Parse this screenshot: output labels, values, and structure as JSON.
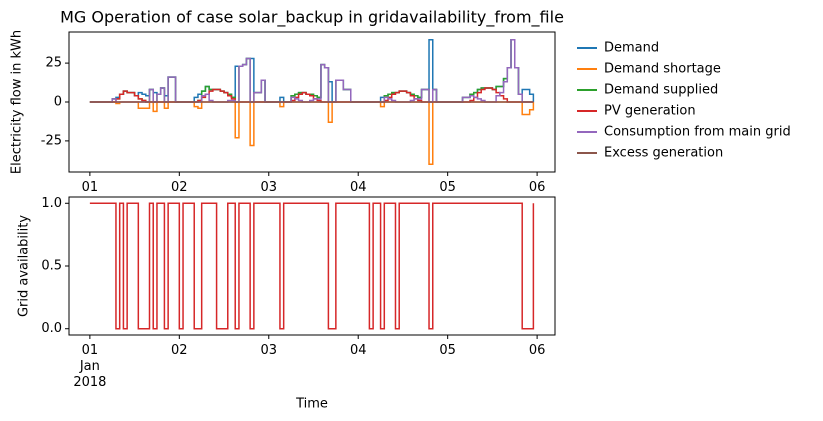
{
  "chart_data": {
    "type": "line",
    "xlabel": "Time",
    "x": [
      0,
      1,
      2,
      3,
      4,
      5,
      6,
      7,
      8,
      9,
      10,
      11,
      12,
      13,
      14,
      15,
      16,
      17,
      18,
      19,
      20,
      21,
      22,
      23,
      24,
      25,
      26,
      27,
      28,
      29,
      30,
      31,
      32,
      33,
      34,
      35,
      36,
      37,
      38,
      39,
      40,
      41,
      42,
      43,
      44,
      45,
      46,
      47,
      48,
      49,
      50,
      51,
      52,
      53,
      54,
      55,
      56,
      57,
      58,
      59,
      60,
      61,
      62,
      63,
      64,
      65,
      66,
      67,
      68,
      69,
      70,
      71,
      72,
      73,
      74,
      75,
      76,
      77,
      78,
      79,
      80,
      81,
      82,
      83,
      84,
      85,
      86,
      87,
      88,
      89,
      90,
      91,
      92,
      93,
      94,
      95,
      96,
      97,
      98,
      99,
      100,
      101,
      102,
      103,
      104,
      105,
      106,
      107,
      108,
      109,
      110,
      111,
      112,
      113,
      114,
      115,
      116,
      117,
      118,
      119
    ],
    "xlim": [
      -5.6,
      124.8
    ],
    "xticks": [
      {
        "value": 0,
        "label": "01\nJan\n2018"
      },
      {
        "value": 24,
        "label": "02"
      },
      {
        "value": 48,
        "label": "03"
      },
      {
        "value": 72,
        "label": "04"
      },
      {
        "value": 96,
        "label": "05"
      },
      {
        "value": 120,
        "label": "06"
      }
    ],
    "panels": [
      {
        "title": "MG Operation of case solar_backup in gridavailability_from_file",
        "ylabel": "Electricity flow in kWh",
        "ylim": [
          -45,
          45
        ],
        "yticks": [
          -25,
          0,
          25
        ],
        "legend": "outside right",
        "series": [
          {
            "name": "Demand",
            "color": "#1f77b4",
            "values": [
              0,
              0,
              0,
              0,
              0,
              0,
              2,
              3,
              5,
              7,
              6,
              6,
              4,
              6,
              5,
              4,
              8,
              6,
              5,
              9,
              4,
              16,
              16,
              0,
              0,
              0,
              0,
              0,
              3,
              5,
              7,
              10,
              8,
              8,
              8,
              7,
              6,
              5,
              3,
              23,
              23,
              24,
              28,
              28,
              6,
              6,
              14,
              0,
              0,
              0,
              0,
              3,
              0,
              0,
              4,
              5,
              6,
              6,
              5,
              5,
              4,
              3,
              24,
              22,
              13,
              0,
              14,
              14,
              8,
              8,
              0,
              0,
              0,
              0,
              0,
              0,
              0,
              0,
              3,
              4,
              5,
              6,
              6,
              7,
              7,
              6,
              5,
              4,
              3,
              8,
              8,
              40,
              8,
              0,
              0,
              0,
              0,
              0,
              0,
              0,
              3,
              3,
              5,
              6,
              8,
              9,
              9,
              9,
              8,
              10,
              10,
              15,
              22,
              40,
              22,
              5,
              8,
              8,
              5,
              0
            ]
          },
          {
            "name": "Demand shortage",
            "color": "#ff7f0e",
            "values": [
              0,
              0,
              0,
              0,
              0,
              0,
              0,
              -1,
              0,
              0,
              0,
              0,
              0,
              -4,
              -4,
              -4,
              0,
              -6,
              0,
              0,
              -4,
              0,
              0,
              0,
              0,
              0,
              0,
              0,
              -3,
              -4,
              0,
              0,
              0,
              0,
              0,
              0,
              0,
              0,
              0,
              -23,
              0,
              0,
              0,
              -28,
              0,
              0,
              0,
              0,
              0,
              0,
              0,
              -3,
              0,
              0,
              0,
              0,
              0,
              0,
              0,
              0,
              0,
              0,
              0,
              0,
              -13,
              0,
              0,
              0,
              0,
              0,
              0,
              0,
              0,
              0,
              0,
              0,
              0,
              0,
              -3,
              0,
              0,
              0,
              0,
              0,
              0,
              0,
              0,
              0,
              0,
              0,
              0,
              -40,
              0,
              0,
              0,
              0,
              0,
              0,
              0,
              0,
              0,
              0,
              0,
              0,
              0,
              0,
              0,
              0,
              0,
              0,
              0,
              0,
              0,
              0,
              0,
              0,
              -8,
              -8,
              -5,
              0
            ]
          },
          {
            "name": "Demand supplied",
            "color": "#2ca02c",
            "values": [
              0,
              0,
              0,
              0,
              0,
              0,
              2,
              2,
              5,
              7,
              6,
              6,
              4,
              2,
              1,
              0,
              8,
              0,
              5,
              9,
              0,
              16,
              16,
              0,
              0,
              0,
              0,
              0,
              0,
              1,
              7,
              10,
              8,
              8,
              8,
              7,
              6,
              5,
              3,
              0,
              23,
              24,
              28,
              0,
              6,
              6,
              14,
              0,
              0,
              0,
              0,
              0,
              0,
              0,
              4,
              5,
              6,
              6,
              5,
              5,
              4,
              3,
              24,
              22,
              0,
              0,
              14,
              14,
              8,
              8,
              0,
              0,
              0,
              0,
              0,
              0,
              0,
              0,
              0,
              4,
              5,
              6,
              6,
              7,
              7,
              6,
              5,
              4,
              3,
              8,
              8,
              0,
              8,
              0,
              0,
              0,
              0,
              0,
              0,
              0,
              3,
              3,
              5,
              6,
              8,
              9,
              9,
              9,
              8,
              10,
              10,
              15,
              22,
              40,
              22,
              5,
              0,
              0,
              0,
              0
            ]
          },
          {
            "name": "PV generation",
            "color": "#d62728",
            "values": [
              0,
              0,
              0,
              0,
              0,
              0,
              0,
              2,
              5,
              7,
              6,
              6,
              4,
              2,
              1,
              0,
              0,
              0,
              0,
              0,
              0,
              0,
              0,
              0,
              0,
              0,
              0,
              0,
              0,
              1,
              3,
              5,
              7,
              8,
              8,
              7,
              6,
              4,
              2,
              0,
              0,
              0,
              0,
              0,
              0,
              0,
              0,
              0,
              0,
              0,
              0,
              0,
              0,
              0,
              1,
              3,
              5,
              6,
              5,
              4,
              2,
              1,
              0,
              0,
              0,
              0,
              0,
              0,
              0,
              0,
              0,
              0,
              0,
              0,
              0,
              0,
              0,
              0,
              0,
              1,
              3,
              5,
              6,
              7,
              7,
              6,
              4,
              2,
              1,
              0,
              0,
              0,
              0,
              0,
              0,
              0,
              0,
              0,
              0,
              0,
              0,
              0,
              1,
              3,
              6,
              8,
              9,
              9,
              8,
              6,
              4,
              2,
              0,
              0,
              0,
              0,
              0,
              0,
              0,
              0
            ]
          },
          {
            "name": "Consumption from main grid",
            "color": "#9467bd",
            "values": [
              0,
              0,
              0,
              0,
              0,
              0,
              2,
              0,
              0,
              0,
              0,
              0,
              0,
              0,
              0,
              0,
              8,
              0,
              5,
              9,
              0,
              16,
              16,
              0,
              0,
              0,
              0,
              0,
              0,
              0,
              4,
              5,
              1,
              0,
              0,
              0,
              0,
              1,
              1,
              0,
              23,
              24,
              28,
              0,
              6,
              6,
              14,
              0,
              0,
              0,
              0,
              0,
              0,
              0,
              3,
              2,
              1,
              0,
              0,
              1,
              2,
              2,
              24,
              22,
              0,
              0,
              14,
              14,
              8,
              8,
              0,
              0,
              0,
              0,
              0,
              0,
              0,
              0,
              0,
              3,
              2,
              1,
              0,
              0,
              0,
              0,
              1,
              2,
              2,
              8,
              8,
              0,
              8,
              0,
              0,
              0,
              0,
              0,
              0,
              0,
              3,
              3,
              4,
              3,
              2,
              1,
              0,
              0,
              0,
              4,
              6,
              13,
              22,
              40,
              22,
              5,
              0,
              0,
              0,
              0
            ]
          },
          {
            "name": "Excess generation",
            "color": "#8c564b",
            "values": [
              0,
              0,
              0,
              0,
              0,
              0,
              0,
              0,
              0,
              0,
              0,
              0,
              0,
              0,
              0,
              0,
              0,
              0,
              0,
              0,
              0,
              0,
              0,
              0,
              0,
              0,
              0,
              0,
              0,
              0,
              0,
              0,
              0,
              0,
              0,
              0,
              0,
              0,
              0,
              0,
              0,
              0,
              0,
              0,
              0,
              0,
              0,
              0,
              0,
              0,
              0,
              0,
              0,
              0,
              0,
              0,
              0,
              0,
              0,
              0,
              0,
              0,
              0,
              0,
              0,
              0,
              0,
              0,
              0,
              0,
              0,
              0,
              0,
              0,
              0,
              0,
              0,
              0,
              0,
              0,
              0,
              0,
              0,
              0,
              0,
              0,
              0,
              0,
              0,
              0,
              0,
              0,
              0,
              0,
              0,
              0,
              0,
              0,
              0,
              0,
              0,
              0,
              0,
              0,
              0,
              0,
              0,
              0,
              0,
              0,
              0,
              0,
              0,
              0,
              0,
              0,
              0,
              0,
              0,
              0
            ]
          }
        ]
      },
      {
        "ylabel": "Grid availability",
        "ylim": [
          -0.05,
          1.05
        ],
        "yticks": [
          {
            "value": 0,
            "label": "0.0"
          },
          {
            "value": 0.5,
            "label": "0.5"
          },
          {
            "value": 1,
            "label": "1.0"
          }
        ],
        "color": "#d62728",
        "values": [
          1,
          1,
          1,
          1,
          1,
          1,
          1,
          0,
          1,
          0,
          1,
          1,
          1,
          0,
          0,
          0,
          1,
          0,
          1,
          1,
          0,
          1,
          1,
          1,
          0,
          1,
          1,
          1,
          0,
          0,
          1,
          1,
          1,
          1,
          0,
          0,
          0,
          1,
          1,
          0,
          1,
          1,
          1,
          0,
          1,
          1,
          1,
          1,
          1,
          1,
          1,
          0,
          1,
          1,
          1,
          1,
          1,
          1,
          1,
          1,
          1,
          1,
          1,
          1,
          0,
          0,
          1,
          1,
          1,
          1,
          1,
          1,
          1,
          1,
          1,
          0,
          1,
          1,
          0,
          1,
          1,
          1,
          0,
          1,
          1,
          1,
          1,
          1,
          1,
          1,
          1,
          0,
          1,
          1,
          1,
          1,
          1,
          1,
          1,
          1,
          1,
          1,
          1,
          1,
          1,
          1,
          1,
          1,
          1,
          1,
          1,
          1,
          1,
          1,
          1,
          1,
          0,
          0,
          0,
          1
        ]
      }
    ]
  }
}
